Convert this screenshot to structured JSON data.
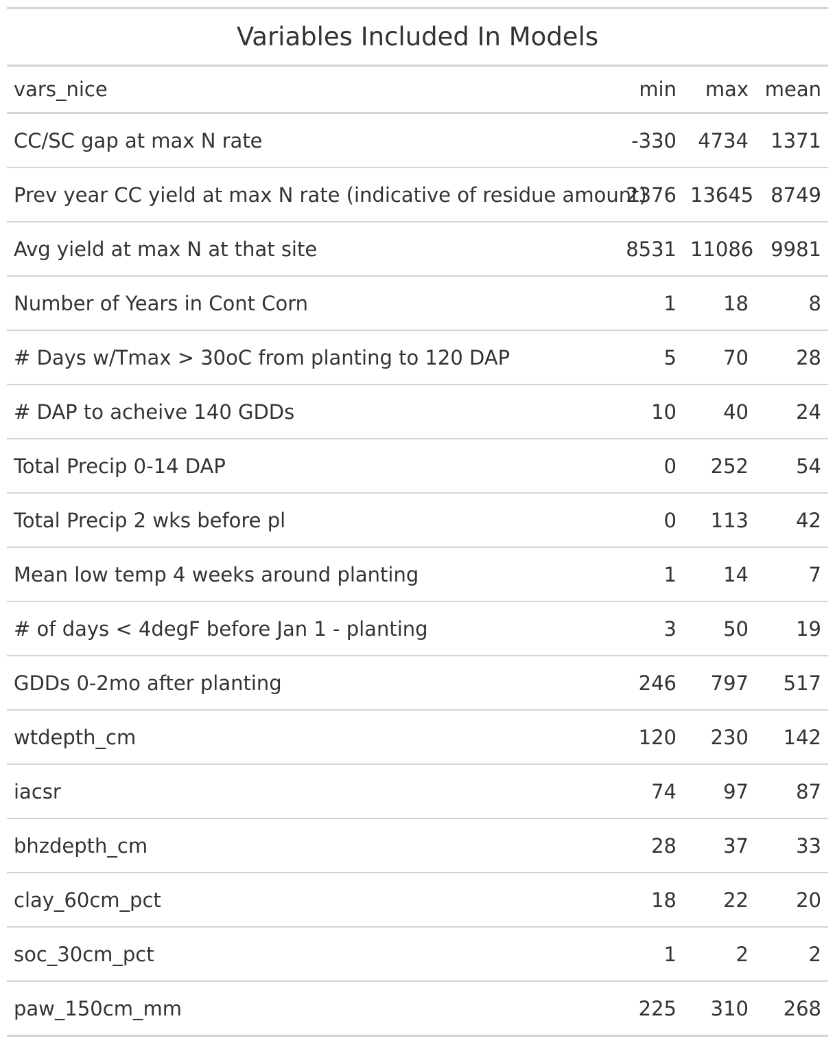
{
  "table": {
    "title": "Variables Included In Models",
    "columns": [
      "vars_nice",
      "min",
      "max",
      "mean"
    ],
    "rows": [
      {
        "name": "CC/SC gap at max N rate",
        "min": "-330",
        "max": "4734",
        "mean": "1371"
      },
      {
        "name": "Prev year CC yield at max N rate (indicative of residue amount)",
        "min": "2376",
        "max": "13645",
        "mean": "8749"
      },
      {
        "name": "Avg yield at max N at that site",
        "min": "8531",
        "max": "11086",
        "mean": "9981"
      },
      {
        "name": "Number of Years in Cont Corn",
        "min": "1",
        "max": "18",
        "mean": "8"
      },
      {
        "name": "# Days w/Tmax > 30oC from planting to 120 DAP",
        "min": "5",
        "max": "70",
        "mean": "28"
      },
      {
        "name": "# DAP to acheive 140 GDDs",
        "min": "10",
        "max": "40",
        "mean": "24"
      },
      {
        "name": "Total Precip 0-14 DAP",
        "min": "0",
        "max": "252",
        "mean": "54"
      },
      {
        "name": "Total Precip 2 wks before pl",
        "min": "0",
        "max": "113",
        "mean": "42"
      },
      {
        "name": "Mean low temp 4 weeks around planting",
        "min": "1",
        "max": "14",
        "mean": "7"
      },
      {
        "name": "# of days < 4degF before Jan 1 - planting",
        "min": "3",
        "max": "50",
        "mean": "19"
      },
      {
        "name": "GDDs 0-2mo after planting",
        "min": "246",
        "max": "797",
        "mean": "517"
      },
      {
        "name": "wtdepth_cm",
        "min": "120",
        "max": "230",
        "mean": "142"
      },
      {
        "name": "iacsr",
        "min": "74",
        "max": "97",
        "mean": "87"
      },
      {
        "name": "bhzdepth_cm",
        "min": "28",
        "max": "37",
        "mean": "33"
      },
      {
        "name": "clay_60cm_pct",
        "min": "18",
        "max": "22",
        "mean": "20"
      },
      {
        "name": "soc_30cm_pct",
        "min": "1",
        "max": "2",
        "mean": "2"
      },
      {
        "name": "paw_150cm_mm",
        "min": "225",
        "max": "310",
        "mean": "268"
      }
    ]
  }
}
